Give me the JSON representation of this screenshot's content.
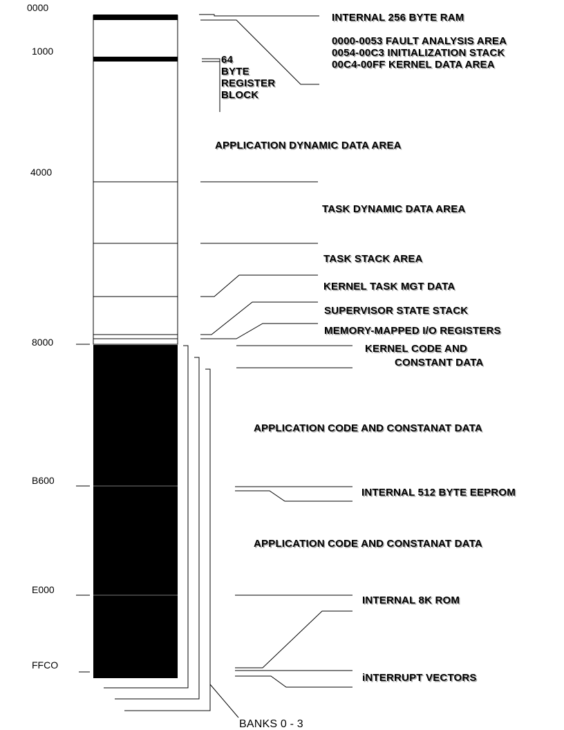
{
  "addresses": {
    "a0000": "0000",
    "a1000": "1000",
    "a4000": "4000",
    "a8000": "8000",
    "aB600": "B600",
    "aE000": "E000",
    "aFFC0": "FFCO"
  },
  "labels": {
    "internal_ram": "INTERNAL 256 BYTE RAM",
    "fault_area": "0000-0053 FAULT ANALYSIS AREA",
    "init_stack": "0054-00C3 INITIALIZATION STACK",
    "kernel_data_area": "00C4-00FF KERNEL DATA AREA",
    "register_block_1": "64",
    "register_block_2": "BYTE",
    "register_block_3": "REGISTER",
    "register_block_4": "BLOCK",
    "app_dynamic": "APPLICATION DYNAMIC DATA AREA",
    "task_dynamic": "TASK DYNAMIC DATA AREA",
    "task_stack": "TASK STACK AREA",
    "kernel_task_mgt": "KERNEL TASK MGT DATA",
    "supervisor_stack": "SUPERVISOR STATE STACK",
    "mmio": "MEMORY-MAPPED I/O REGISTERS",
    "kernel_code_1": "KERNEL CODE AND",
    "kernel_code_2": "CONSTANT DATA",
    "app_code_1": "APPLICATION CODE AND CONSTANAT DATA",
    "eeprom": "INTERNAL 512 BYTE EEPROM",
    "app_code_2": "APPLICATION CODE AND CONSTANAT DATA",
    "rom": "INTERNAL 8K ROM",
    "interrupt_vectors": "iNTERRUPT VECTORS",
    "banks": "BANKS 0 - 3"
  },
  "colors": {
    "line": "#000000",
    "rom_fill": "#000000",
    "ram_fill": "#ffffff"
  }
}
